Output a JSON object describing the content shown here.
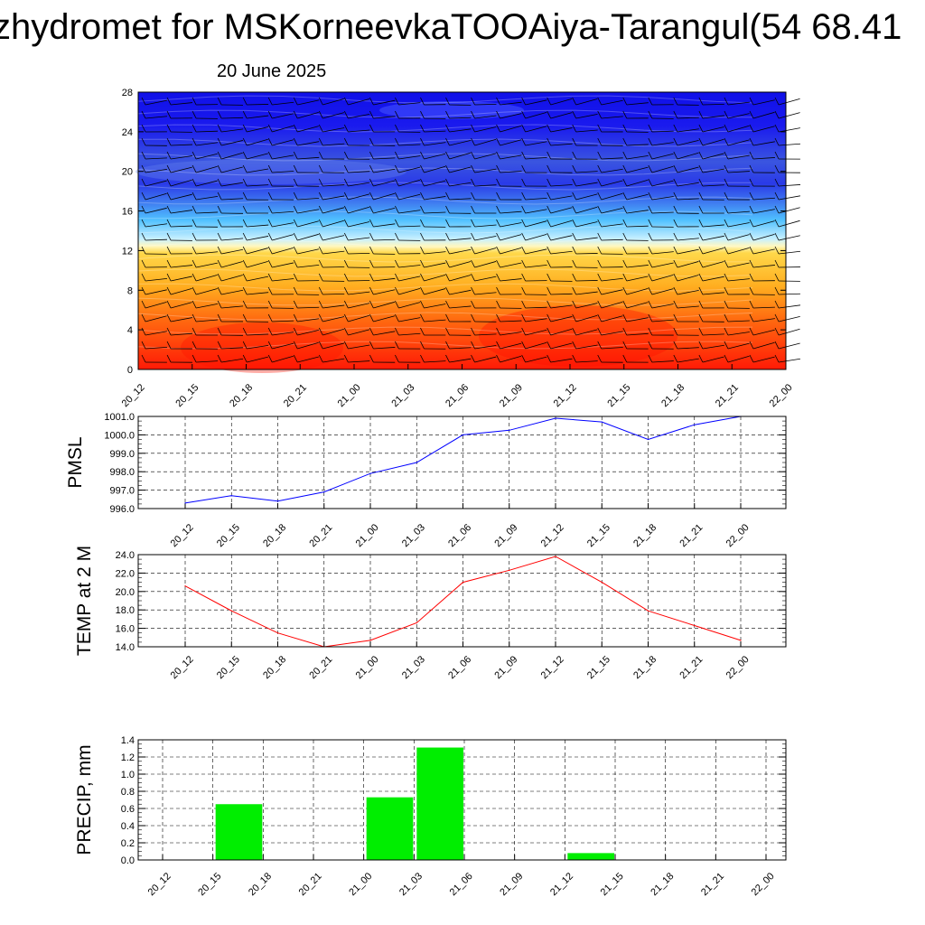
{
  "title": "zhydromet for MSKorneevkaTOOAiya-Tarangul(54 68.41",
  "subtitle": "20 June 2025",
  "chart_data": [
    {
      "type": "heatmap",
      "ylim": [
        0,
        28
      ],
      "yticks": [
        "0",
        "4",
        "8",
        "12",
        "16",
        "20",
        "24",
        "28"
      ],
      "categories": [
        "20_12",
        "20_15",
        "20_18",
        "20_21",
        "21_00",
        "21_03",
        "21_06",
        "21_09",
        "21_12",
        "21_15",
        "21_18",
        "21_21",
        "22_00"
      ],
      "colors": {
        "top": "#1414e6",
        "mid": "#9fe0ff",
        "warm": "#ffd24a",
        "bottom": "#ff2a0a"
      }
    },
    {
      "type": "line",
      "ylabel": "PMSL",
      "ylim": [
        996.0,
        1001.0
      ],
      "yticks": [
        "996.0",
        "997.0",
        "998.0",
        "999.0",
        "1000.0",
        "1001.0"
      ],
      "categories": [
        "20_12",
        "20_15",
        "20_18",
        "20_21",
        "21_00",
        "21_03",
        "21_06",
        "21_09",
        "21_12",
        "21_15",
        "21_18",
        "21_21",
        "22_00"
      ],
      "values": [
        996.3,
        996.7,
        996.4,
        996.9,
        997.9,
        998.5,
        1000.0,
        1000.25,
        1000.9,
        1000.7,
        999.75,
        1000.55,
        1001.0
      ],
      "color": "#0000ff",
      "grid": true
    },
    {
      "type": "line",
      "ylabel": "TEMP at 2 M",
      "ylim": [
        14.0,
        24.0
      ],
      "yticks": [
        "14.0",
        "16.0",
        "18.0",
        "20.0",
        "22.0",
        "24.0"
      ],
      "categories": [
        "20_12",
        "20_15",
        "20_18",
        "20_21",
        "21_00",
        "21_03",
        "21_06",
        "21_09",
        "21_12",
        "21_15",
        "21_18",
        "21_21",
        "22_00"
      ],
      "values": [
        20.6,
        17.9,
        15.5,
        14.0,
        14.7,
        16.6,
        21.0,
        22.3,
        23.8,
        21.0,
        17.9,
        16.3,
        14.7
      ],
      "color": "#ff0000",
      "grid": true
    },
    {
      "type": "bar",
      "ylabel": "PRECIP, mm",
      "ylim": [
        0.0,
        1.4
      ],
      "yticks": [
        "0.0",
        "0.2",
        "0.4",
        "0.6",
        "0.8",
        "1.0",
        "1.2",
        "1.4"
      ],
      "categories": [
        "20_12",
        "20_15",
        "20_18",
        "20_21",
        "21_00",
        "21_03",
        "21_06",
        "21_09",
        "21_12",
        "21_15",
        "21_18",
        "21_21",
        "22_00"
      ],
      "values": [
        0,
        0.65,
        0,
        0,
        0.73,
        1.31,
        0,
        0,
        0.08,
        0,
        0,
        0,
        0
      ],
      "color": "#00ee00",
      "grid": true
    }
  ]
}
